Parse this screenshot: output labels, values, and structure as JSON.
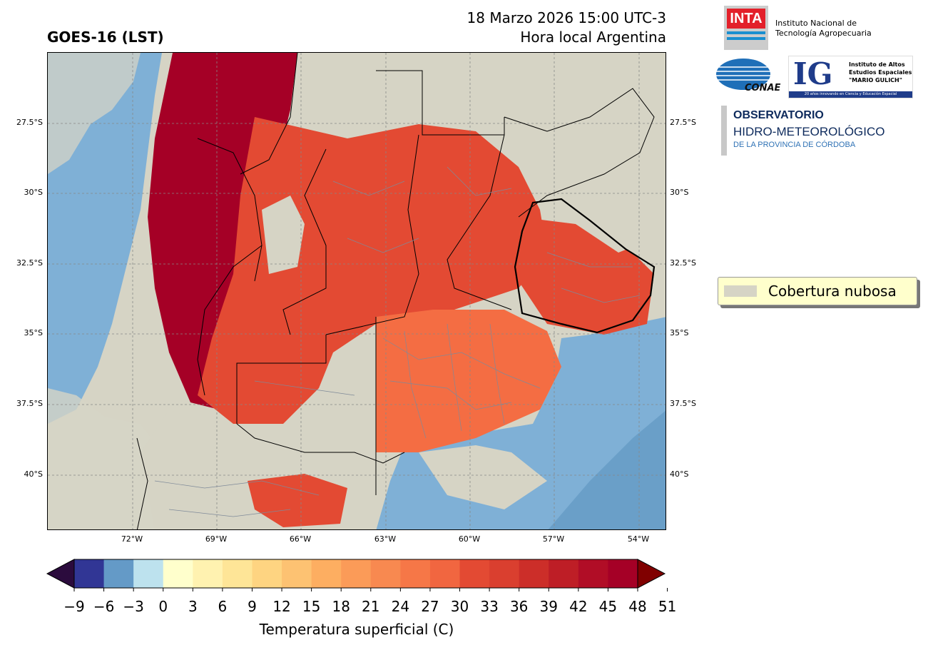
{
  "header": {
    "title": "GOES-16 (LST)",
    "datetime": "18 Marzo 2026 15:00 UTC-3",
    "local_time": "Hora local Argentina"
  },
  "map": {
    "lat_labels": [
      "27.5°S",
      "30°S",
      "32.5°S",
      "35°S",
      "37.5°S",
      "40°S"
    ],
    "lon_labels": [
      "72°W",
      "69°W",
      "66°W",
      "63°W",
      "60°W",
      "57°W",
      "54°W"
    ],
    "colors": {
      "cloud": "#d6d4c5",
      "ocean": "#7fb0d6",
      "hot": "#a50026",
      "warm": "#e34a33",
      "mild": "#f46d43"
    }
  },
  "legend": {
    "label": "Cobertura nubosa",
    "swatch_color": "#d6d4c5"
  },
  "colorbar": {
    "title": "Temperatura superficial (C)",
    "ticks": [
      "−9",
      "−6",
      "−3",
      "0",
      "3",
      "6",
      "9",
      "12",
      "15",
      "18",
      "21",
      "24",
      "27",
      "30",
      "33",
      "36",
      "39",
      "42",
      "45",
      "48",
      "51"
    ],
    "colors": [
      "#313695",
      "#649ac7",
      "#bde2ee",
      "#ffffcc",
      "#fff2b0",
      "#fee597",
      "#fed481",
      "#fdc272",
      "#fdae61",
      "#fb9b58",
      "#f88950",
      "#f67747",
      "#f16640",
      "#e34a33",
      "#da3f2f",
      "#cc2e29",
      "#be1e26",
      "#b10d26",
      "#a50026"
    ],
    "under_color": "#2b0b3d",
    "over_color": "#800000"
  },
  "logos": {
    "inta_mark": "INTA",
    "inta_name": "Instituto Nacional de\nTecnología Agropecuaria",
    "conae": "CONAE",
    "ig_mark": "IG",
    "ig_name": "Instituto de Altos\nEstudios Espaciales\n\"MARIO GULICH\"",
    "ig_tagline": "20 años innovando en Ciencia y Educación Espacial",
    "obs_line1": "OBSERVATORIO",
    "obs_line2": "HIDRO-METEOROLÓGICO",
    "obs_line3": "DE LA PROVINCIA DE CÓRDOBA"
  }
}
